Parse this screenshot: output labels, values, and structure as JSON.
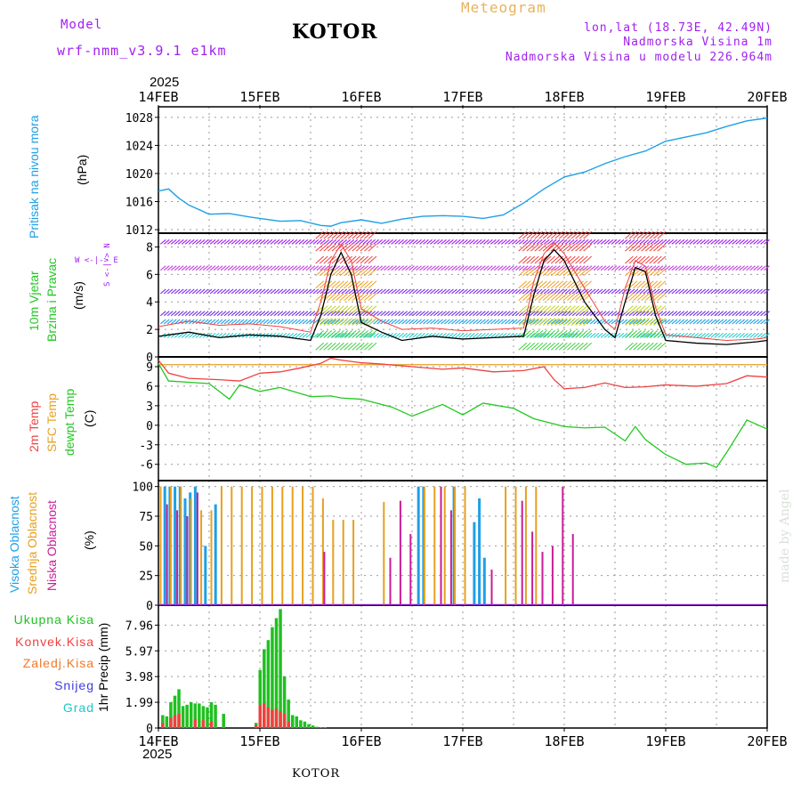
{
  "header": {
    "model_label": "Model",
    "model_name": "wrf-nmm_v3.9.1 e1km",
    "station": "KOTOR",
    "product": "Meteogram",
    "lonlat": "lon,lat (18.73E, 42.49N)",
    "elevation": "Nadmorska Visina 1m",
    "model_elevation": "Nadmorska Visina u modelu 226.964m",
    "footer_station": "KOTOR",
    "credit": "made by Angel",
    "year": "2025"
  },
  "colors": {
    "pressure": "#1ea0e6",
    "temp2m": "#f04040",
    "sfc": "#e6a020",
    "dewpt": "#20c820",
    "high_cloud": "#1ea0e6",
    "mid_cloud": "#e6a020",
    "low_cloud": "#c81e96",
    "precip_total": "#20c020",
    "precip_conv": "#f04040",
    "precip_frz": "#f07828",
    "snow": "#3c3ce6",
    "hail": "#20c8c8"
  },
  "chart_data": [
    {
      "type": "line",
      "id": "pressure",
      "ylabels": [
        "Pritisak na nivou mora",
        "(hPa)"
      ],
      "x_ticks": [
        "14FEB",
        "15FEB",
        "16FEB",
        "17FEB",
        "18FEB",
        "19FEB",
        "20FEB"
      ],
      "ylim": [
        1011.5,
        1029.5
      ],
      "y_ticks": [
        1012,
        1016,
        1020,
        1024,
        1028
      ],
      "series": [
        {
          "x": [
            0,
            0.1,
            0.2,
            0.3,
            0.5,
            0.7,
            0.9,
            1.0,
            1.2,
            1.4,
            1.6,
            1.7,
            1.8,
            2.0,
            2.2,
            2.4,
            2.6,
            2.8,
            3.0,
            3.2,
            3.4,
            3.6,
            3.8,
            4.0,
            4.2,
            4.4,
            4.6,
            4.8,
            5.0,
            5.2,
            5.4,
            5.6,
            5.8,
            6.0
          ],
          "y": [
            1017.5,
            1017.8,
            1016.5,
            1015.5,
            1014.2,
            1014.3,
            1013.8,
            1013.6,
            1013.2,
            1013.3,
            1012.6,
            1012.5,
            1013.0,
            1013.4,
            1012.9,
            1013.5,
            1013.9,
            1014.0,
            1013.9,
            1013.6,
            1014.1,
            1015.8,
            1017.8,
            1019.5,
            1020.2,
            1021.4,
            1022.4,
            1023.2,
            1024.6,
            1025.2,
            1025.8,
            1026.7,
            1027.5,
            1027.9
          ]
        }
      ]
    },
    {
      "type": "line",
      "id": "wind",
      "ylabels": [
        "10m Vjetar",
        "Brzina i Pravac",
        "(m/s)"
      ],
      "compass": "W <-|-> E",
      "compass_ns": "S <-|-> N",
      "ylim": [
        0,
        9
      ],
      "y_ticks": [
        0,
        2,
        4,
        6,
        8
      ],
      "series": [
        {
          "name": "speed",
          "x": [
            0,
            0.3,
            0.6,
            0.9,
            1.2,
            1.5,
            1.6,
            1.7,
            1.8,
            1.9,
            2.0,
            2.2,
            2.4,
            2.7,
            3.0,
            3.3,
            3.6,
            3.7,
            3.8,
            3.9,
            4.0,
            4.2,
            4.4,
            4.5,
            4.6,
            4.7,
            4.8,
            4.9,
            5.0,
            5.3,
            5.6,
            5.9,
            6.0
          ],
          "y": [
            1.5,
            1.8,
            1.4,
            1.6,
            1.5,
            1.2,
            3.0,
            6.0,
            7.6,
            6.0,
            2.5,
            1.8,
            1.2,
            1.5,
            1.3,
            1.4,
            1.5,
            4.5,
            7.0,
            7.8,
            7.0,
            4.0,
            2.0,
            1.4,
            4.0,
            6.5,
            6.2,
            3.0,
            1.2,
            1.0,
            0.9,
            1.1,
            1.2
          ]
        },
        {
          "name": "gust",
          "x": [
            0,
            0.3,
            0.6,
            0.9,
            1.2,
            1.5,
            1.6,
            1.7,
            1.8,
            1.9,
            2.0,
            2.2,
            2.4,
            2.7,
            3.0,
            3.3,
            3.6,
            3.7,
            3.8,
            3.9,
            4.0,
            4.2,
            4.4,
            4.5,
            4.6,
            4.7,
            4.8,
            4.9,
            5.0,
            5.3,
            5.6,
            5.9,
            6.0
          ],
          "y": [
            2.2,
            2.6,
            2.3,
            2.4,
            2.2,
            1.8,
            4.0,
            7.0,
            8.2,
            7.0,
            3.5,
            2.6,
            2.0,
            2.1,
            1.9,
            2.0,
            2.1,
            5.5,
            7.5,
            8.3,
            7.5,
            5.0,
            2.6,
            2.0,
            5.0,
            7.0,
            6.6,
            3.6,
            1.6,
            1.4,
            1.2,
            1.3,
            1.4
          ]
        }
      ]
    },
    {
      "type": "line",
      "id": "temperature",
      "ylabels": [
        "2m Temp",
        "SFC Temp",
        "dewpt Temp",
        "(C)"
      ],
      "ylim": [
        -8.5,
        10.5
      ],
      "y_ticks": [
        -6,
        -3,
        0,
        3,
        6,
        9
      ],
      "series": [
        {
          "name": "2m Temp",
          "x": [
            0,
            0.1,
            0.3,
            0.6,
            0.8,
            1.0,
            1.2,
            1.4,
            1.6,
            1.7,
            1.8,
            2.0,
            2.2,
            2.5,
            2.8,
            3.0,
            3.3,
            3.6,
            3.8,
            3.9,
            4.0,
            4.2,
            4.4,
            4.6,
            4.8,
            5.0,
            5.3,
            5.6,
            5.8,
            6.0
          ],
          "y": [
            10.0,
            8.0,
            7.2,
            7.0,
            6.8,
            8.0,
            8.2,
            8.8,
            9.5,
            10.3,
            10.0,
            9.6,
            9.4,
            9.0,
            8.6,
            8.8,
            8.2,
            8.4,
            9.0,
            7.0,
            5.6,
            5.8,
            6.5,
            5.8,
            5.9,
            6.2,
            6.0,
            6.4,
            7.6,
            7.4
          ]
        },
        {
          "name": "SFC Temp",
          "x": [
            0,
            6.0
          ],
          "y": [
            9.3,
            9.3
          ]
        },
        {
          "name": "dewpt Temp",
          "x": [
            0,
            0.1,
            0.3,
            0.5,
            0.7,
            0.8,
            1.0,
            1.2,
            1.5,
            1.7,
            1.8,
            2.0,
            2.3,
            2.5,
            2.8,
            3.0,
            3.2,
            3.5,
            3.7,
            4.0,
            4.2,
            4.4,
            4.6,
            4.7,
            4.8,
            5.0,
            5.2,
            5.4,
            5.5,
            5.6,
            5.8,
            6.0
          ],
          "y": [
            9.5,
            6.8,
            6.6,
            6.4,
            4.0,
            6.2,
            5.2,
            5.8,
            4.4,
            4.5,
            4.2,
            4.0,
            2.8,
            1.4,
            3.2,
            1.6,
            3.4,
            2.6,
            1.0,
            -0.2,
            -0.4,
            -0.3,
            -2.4,
            -0.2,
            -2.2,
            -4.5,
            -6.0,
            -5.8,
            -6.5,
            -4.2,
            0.8,
            -0.6
          ]
        }
      ]
    },
    {
      "type": "bar",
      "id": "clouds",
      "ylabels": [
        "Visoka Oblacnost",
        "Srednja Oblacnost",
        "Niska Oblacnost",
        "(%)"
      ],
      "ylim": [
        0,
        105
      ],
      "y_ticks": [
        0,
        25,
        50,
        75,
        100
      ],
      "series": [
        {
          "name": "Visoka",
          "x": [
            0.05,
            0.1,
            0.15,
            0.2,
            0.25,
            0.3,
            0.35,
            0.45,
            0.55,
            2.55,
            2.6,
            2.9,
            3.1,
            3.15,
            3.2
          ],
          "y": [
            100,
            100,
            100,
            100,
            90,
            95,
            100,
            50,
            85,
            100,
            100,
            100,
            70,
            90,
            40
          ]
        },
        {
          "name": "Srednja",
          "x": [
            0.0,
            0.1,
            0.2,
            0.3,
            0.4,
            0.5,
            0.6,
            0.7,
            0.8,
            0.9,
            1.0,
            1.1,
            1.2,
            1.3,
            1.4,
            1.5,
            1.6,
            1.7,
            1.8,
            1.9,
            2.2,
            2.6,
            2.7,
            2.8,
            2.9,
            3.0,
            3.4,
            3.5,
            3.6,
            3.7
          ],
          "y": [
            100,
            100,
            100,
            90,
            80,
            80,
            100,
            100,
            100,
            100,
            100,
            100,
            100,
            100,
            100,
            100,
            90,
            72,
            72,
            72,
            87,
            100,
            100,
            100,
            100,
            100,
            100,
            100,
            100,
            100
          ]
        },
        {
          "name": "Niska",
          "x": [
            0.05,
            0.15,
            0.25,
            0.35,
            1.6,
            2.25,
            2.35,
            2.45,
            2.75,
            2.85,
            3.25,
            3.55,
            3.65,
            3.75,
            3.85,
            3.95,
            4.05
          ],
          "y": [
            85,
            80,
            75,
            95,
            45,
            40,
            88,
            60,
            100,
            80,
            30,
            88,
            62,
            45,
            50,
            100,
            60
          ]
        }
      ]
    },
    {
      "type": "bar",
      "id": "precip",
      "ylabels": [
        "1hr Precip (mm)"
      ],
      "legend": [
        "Ukupna Kisa",
        "Konvek.Kisa",
        "Zaledj.Kisa",
        "Snijeg",
        "Grad"
      ],
      "ylim": [
        0,
        9.5
      ],
      "y_ticks": [
        0,
        1.99,
        3.98,
        5.97,
        7.96
      ],
      "x_ticks": [
        "14FEB",
        "15FEB",
        "16FEB",
        "17FEB",
        "18FEB",
        "19FEB",
        "20FEB"
      ],
      "series": [
        {
          "name": "Ukupna Kisa",
          "x": [
            0.04,
            0.08,
            0.12,
            0.16,
            0.2,
            0.24,
            0.28,
            0.32,
            0.36,
            0.4,
            0.44,
            0.48,
            0.52,
            0.56,
            0.64,
            0.96,
            1.0,
            1.04,
            1.08,
            1.12,
            1.16,
            1.2,
            1.24,
            1.28,
            1.32,
            1.36,
            1.4,
            1.44,
            1.48,
            1.52,
            1.56,
            1.6,
            1.64
          ],
          "y": [
            1.0,
            0.9,
            2.0,
            2.5,
            3.0,
            1.7,
            1.8,
            2.0,
            1.9,
            1.9,
            1.7,
            1.6,
            2.0,
            1.8,
            1.1,
            0.4,
            4.5,
            6.1,
            6.8,
            7.8,
            8.5,
            9.2,
            4.0,
            2.2,
            1.0,
            0.9,
            0.6,
            0.5,
            0.3,
            0.2,
            0.1,
            0.05,
            0.05
          ]
        },
        {
          "name": "Konvek.Kisa",
          "x": [
            0.04,
            0.12,
            0.16,
            0.2,
            0.36,
            0.44,
            0.52,
            0.96,
            1.0,
            1.04,
            1.08,
            1.12,
            1.16,
            1.2,
            1.24,
            1.28
          ],
          "y": [
            0.4,
            0.8,
            1.0,
            1.1,
            0.7,
            0.6,
            0.5,
            0.2,
            1.8,
            1.9,
            1.6,
            1.4,
            1.5,
            1.3,
            1.1,
            0.5
          ]
        }
      ]
    }
  ]
}
